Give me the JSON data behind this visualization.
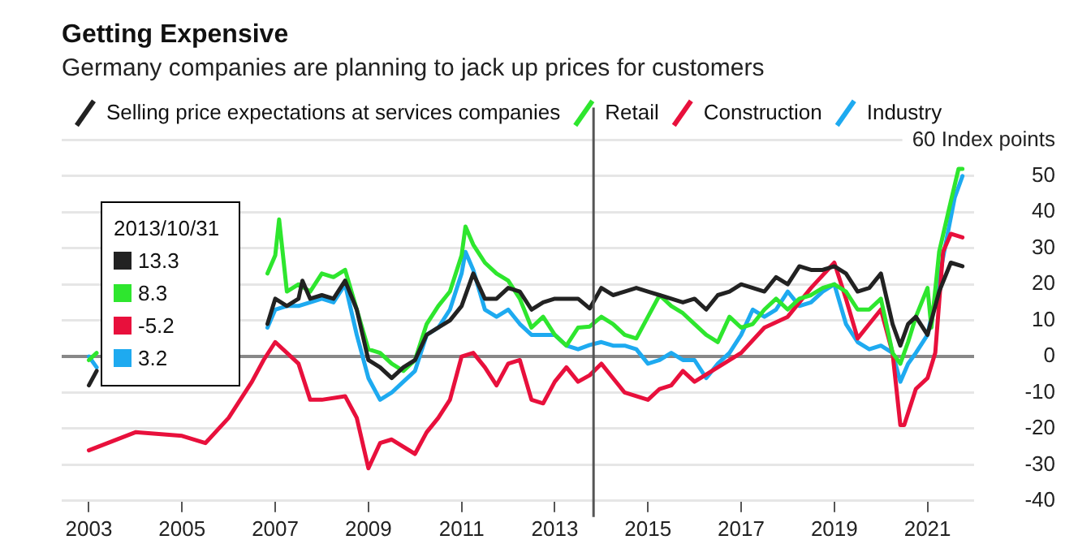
{
  "chart_data": {
    "type": "line",
    "title": "Getting Expensive",
    "subtitle": "Germany companies are planning to jack up prices for customers",
    "legend": "top left",
    "grid": "y",
    "marker": "none",
    "line_style": "solid",
    "xlim": [
      "2002-06",
      "2022-01"
    ],
    "xticks": [
      "2003",
      "2005",
      "2007",
      "2009",
      "2011",
      "2013",
      "2015",
      "2017",
      "2019",
      "2021"
    ],
    "ylim": [
      -40,
      60
    ],
    "yticks": [
      -40,
      -30,
      -20,
      -10,
      0,
      10,
      20,
      30,
      40,
      50,
      {
        "value": 60,
        "label": "60 Index points"
      }
    ],
    "ref_lines": [
      {
        "axis": "x",
        "value": "2013-10-31",
        "color": "#555555"
      }
    ],
    "annotations": [
      "2013/10/31",
      "13.3",
      "8.3",
      "-5.2",
      "3.2"
    ],
    "series": [
      {
        "name": "Selling price expectations at services companies",
        "color": "#222222",
        "x": [
          "2003-01",
          "2003-03",
          "2005-01",
          "2006-11",
          "2007-01",
          "2007-04",
          "2007-07",
          "2007-08",
          "2007-10",
          "2008-01",
          "2008-04",
          "2008-07",
          "2008-10",
          "2009-01",
          "2009-04",
          "2009-07",
          "2009-10",
          "2010-01",
          "2010-04",
          "2010-07",
          "2010-10",
          "2011-01",
          "2011-04",
          "2011-07",
          "2011-10",
          "2012-01",
          "2012-04",
          "2012-07",
          "2012-10",
          "2013-01",
          "2013-07",
          "2013-10",
          "2014-01",
          "2014-04",
          "2014-07",
          "2014-10",
          "2015-01",
          "2015-04",
          "2015-07",
          "2015-10",
          "2016-01",
          "2016-04",
          "2016-07",
          "2016-10",
          "2017-01",
          "2017-07",
          "2017-10",
          "2018-01",
          "2018-04",
          "2018-07",
          "2018-10",
          "2019-01",
          "2019-04",
          "2019-07",
          "2019-10",
          "2020-01",
          "2020-04",
          "2020-06",
          "2020-08",
          "2020-10",
          "2021-01",
          "2021-04",
          "2021-07",
          "2021-10"
        ],
        "values": [
          -8,
          -4,
          null,
          9,
          16,
          14,
          16,
          21,
          16,
          17,
          16,
          21,
          13,
          -1,
          -3,
          -6,
          -3,
          -1,
          6,
          8,
          10,
          14,
          23,
          16,
          16,
          19,
          18,
          13,
          15,
          16,
          16,
          13.3,
          19,
          17,
          18,
          19,
          18,
          17,
          16,
          15,
          16,
          13,
          17,
          18,
          20,
          18,
          22,
          20,
          25,
          24,
          24,
          25,
          23,
          18,
          19,
          23,
          9,
          3,
          9,
          11,
          6,
          18,
          26,
          25
        ]
      },
      {
        "name": "Retail",
        "color": "#2ee62e",
        "x": [
          "2003-01",
          "2003-03",
          "2005-01",
          "2006-11",
          "2007-01",
          "2007-02",
          "2007-04",
          "2007-07",
          "2007-10",
          "2008-01",
          "2008-04",
          "2008-07",
          "2008-10",
          "2009-01",
          "2009-04",
          "2009-07",
          "2009-10",
          "2010-01",
          "2010-04",
          "2010-07",
          "2010-10",
          "2011-01",
          "2011-02",
          "2011-04",
          "2011-07",
          "2011-10",
          "2012-01",
          "2012-04",
          "2012-07",
          "2012-10",
          "2013-01",
          "2013-04",
          "2013-07",
          "2013-10",
          "2014-01",
          "2014-04",
          "2014-07",
          "2014-10",
          "2015-01",
          "2015-04",
          "2015-07",
          "2015-10",
          "2016-01",
          "2016-04",
          "2016-07",
          "2016-10",
          "2017-01",
          "2017-04",
          "2017-07",
          "2017-10",
          "2018-01",
          "2018-04",
          "2018-07",
          "2018-10",
          "2019-01",
          "2019-04",
          "2019-07",
          "2019-10",
          "2020-01",
          "2020-04",
          "2020-06",
          "2020-08",
          "2020-10",
          "2021-01",
          "2021-02",
          "2021-04",
          "2021-07",
          "2021-09",
          "2021-10"
        ],
        "values": [
          -1,
          1,
          null,
          23,
          28,
          38,
          18,
          20,
          18,
          23,
          22,
          24,
          13,
          2,
          1,
          -2,
          -4,
          -1,
          9,
          14,
          18,
          28,
          36,
          31,
          26,
          23,
          21,
          16,
          8,
          11,
          6,
          3,
          8,
          8.3,
          11,
          9,
          6,
          5,
          11,
          17,
          14,
          12,
          9,
          6,
          4,
          11,
          8,
          9,
          13,
          16,
          13,
          16,
          17,
          19,
          20,
          18,
          13,
          13,
          16,
          1,
          -2,
          4,
          11,
          19,
          8,
          29,
          43,
          52,
          52
        ]
      },
      {
        "name": "Construction",
        "color": "#e8103c",
        "x": [
          "2003-01",
          "2004-01",
          "2005-01",
          "2005-07",
          "2006-01",
          "2006-07",
          "2006-10",
          "2007-01",
          "2007-07",
          "2007-10",
          "2008-01",
          "2008-07",
          "2008-10",
          "2009-01",
          "2009-04",
          "2009-07",
          "2010-01",
          "2010-04",
          "2010-07",
          "2010-10",
          "2011-01",
          "2011-04",
          "2011-07",
          "2011-10",
          "2012-01",
          "2012-04",
          "2012-07",
          "2012-10",
          "2013-01",
          "2013-04",
          "2013-07",
          "2013-10",
          "2014-01",
          "2014-04",
          "2014-07",
          "2014-10",
          "2015-01",
          "2015-04",
          "2015-07",
          "2015-10",
          "2016-01",
          "2016-07",
          "2017-01",
          "2017-07",
          "2018-01",
          "2018-07",
          "2019-01",
          "2019-04",
          "2019-07",
          "2019-10",
          "2020-01",
          "2020-04",
          "2020-06",
          "2020-07",
          "2020-10",
          "2021-01",
          "2021-03",
          "2021-05",
          "2021-07",
          "2021-10"
        ],
        "values": [
          -26,
          -21,
          -22,
          -24,
          -17,
          -7,
          -1,
          4,
          -2,
          -12,
          -12,
          -11,
          -17,
          -31,
          -24,
          -23,
          -27,
          -21,
          -17,
          -12,
          0,
          1,
          -3,
          -8,
          -2,
          -1,
          -12,
          -13,
          -7,
          -3,
          -7,
          -5.2,
          -2,
          -6,
          -10,
          -11,
          -12,
          -9,
          -8,
          -4,
          -7,
          -3,
          1,
          8,
          11,
          19,
          26,
          16,
          5,
          9,
          13,
          1,
          -19,
          -19,
          -9,
          -6,
          1,
          29,
          34,
          33
        ]
      },
      {
        "name": "Industry",
        "color": "#1eaaf0",
        "x": [
          "2003-01",
          "2003-03",
          "2005-01",
          "2006-11",
          "2007-01",
          "2007-04",
          "2007-07",
          "2007-10",
          "2008-01",
          "2008-04",
          "2008-07",
          "2008-10",
          "2009-01",
          "2009-04",
          "2009-07",
          "2009-10",
          "2010-01",
          "2010-04",
          "2010-07",
          "2010-10",
          "2011-01",
          "2011-02",
          "2011-04",
          "2011-07",
          "2011-10",
          "2012-01",
          "2012-04",
          "2012-07",
          "2012-10",
          "2013-01",
          "2013-04",
          "2013-07",
          "2013-10",
          "2014-01",
          "2014-04",
          "2014-07",
          "2014-10",
          "2015-01",
          "2015-04",
          "2015-07",
          "2015-10",
          "2016-01",
          "2016-04",
          "2016-07",
          "2016-10",
          "2017-01",
          "2017-04",
          "2017-07",
          "2017-10",
          "2018-01",
          "2018-04",
          "2018-07",
          "2018-10",
          "2019-01",
          "2019-04",
          "2019-07",
          "2019-10",
          "2020-01",
          "2020-04",
          "2020-06",
          "2020-08",
          "2020-10",
          "2021-01",
          "2021-03",
          "2021-06",
          "2021-08",
          "2021-10"
        ],
        "values": [
          0,
          -3,
          null,
          8,
          13,
          14,
          14,
          15,
          16,
          15,
          20,
          6,
          -6,
          -12,
          -10,
          -7,
          -4,
          6,
          8,
          13,
          23,
          29,
          24,
          13,
          11,
          13,
          9,
          6,
          6,
          6,
          3,
          2,
          3.2,
          4,
          3,
          3,
          2,
          -2,
          -1,
          1,
          -1,
          -1,
          -6,
          -2,
          1,
          6,
          13,
          11,
          13,
          18,
          14,
          15,
          18,
          20,
          9,
          4,
          2,
          3,
          1,
          -7,
          -2,
          1,
          6,
          16,
          33,
          44,
          50
        ]
      }
    ]
  }
}
